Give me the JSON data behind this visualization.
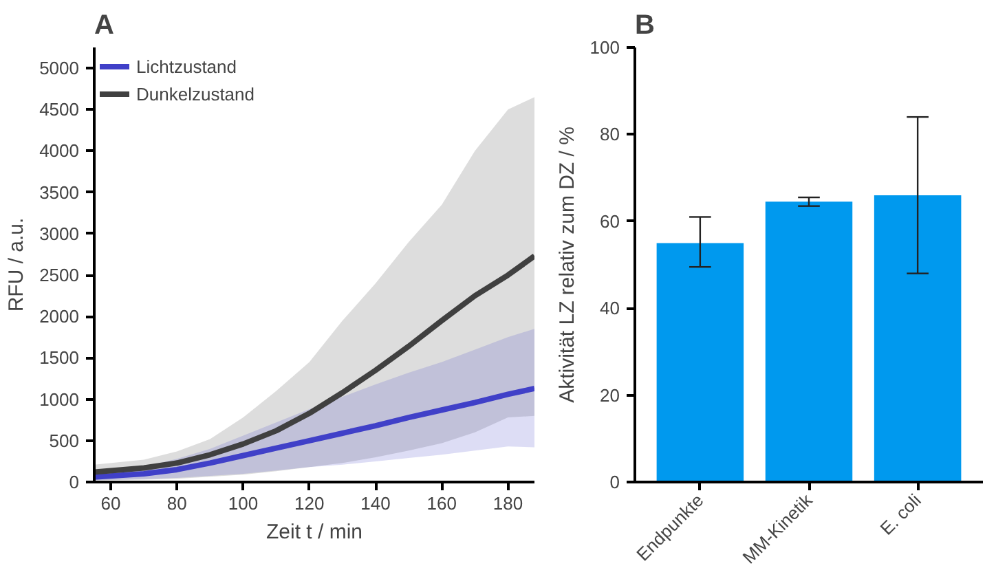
{
  "chart_data": [
    {
      "type": "line",
      "title": "A",
      "xlabel": "Zeit t / min",
      "ylabel": "RFU / a.u.",
      "x": [
        55,
        70,
        80,
        90,
        100,
        110,
        120,
        130,
        140,
        150,
        160,
        170,
        180,
        188
      ],
      "series": [
        {
          "name": "Lichtzustand",
          "color": "#4040c8",
          "values": [
            60,
            100,
            150,
            230,
            320,
            410,
            500,
            590,
            680,
            780,
            870,
            960,
            1060,
            1130
          ],
          "lower": [
            20,
            35,
            50,
            75,
            100,
            140,
            180,
            210,
            250,
            290,
            330,
            380,
            430,
            420
          ],
          "upper": [
            100,
            180,
            280,
            400,
            560,
            720,
            880,
            1030,
            1180,
            1320,
            1450,
            1600,
            1750,
            1850
          ]
        },
        {
          "name": "Dunkelzustand",
          "color": "#404040",
          "values": [
            120,
            170,
            230,
            330,
            460,
            620,
            830,
            1080,
            1350,
            1640,
            1950,
            2250,
            2500,
            2730
          ],
          "lower": [
            20,
            30,
            40,
            65,
            90,
            130,
            180,
            230,
            300,
            380,
            470,
            600,
            780,
            800
          ],
          "upper": [
            210,
            270,
            370,
            520,
            780,
            1100,
            1450,
            1950,
            2400,
            2900,
            3350,
            4000,
            4500,
            4650
          ]
        }
      ],
      "xlim": [
        55,
        188
      ],
      "xticks": [
        60,
        80,
        100,
        120,
        140,
        160,
        180
      ],
      "ylim": [
        0,
        5250
      ],
      "yticks": [
        0,
        500,
        1000,
        1500,
        2000,
        2500,
        3000,
        3500,
        4000,
        4500,
        5000
      ],
      "legend": "top left",
      "grid": false,
      "line_style": "solid",
      "marker": "none"
    },
    {
      "type": "bar",
      "title": "B",
      "ylabel": "Aktivität LZ relativ zum DZ / %",
      "categories": [
        "Endpunkte",
        "MM-Kinetik",
        "E. coli"
      ],
      "values": [
        55,
        64.5,
        66
      ],
      "color": "#0099ee",
      "errors": [
        [
          49.5,
          61
        ],
        [
          63.5,
          65.5
        ],
        [
          48,
          84
        ]
      ],
      "ylim": [
        0,
        100
      ],
      "yticks": [
        0,
        20,
        40,
        60,
        80,
        100
      ],
      "grid": false
    }
  ]
}
